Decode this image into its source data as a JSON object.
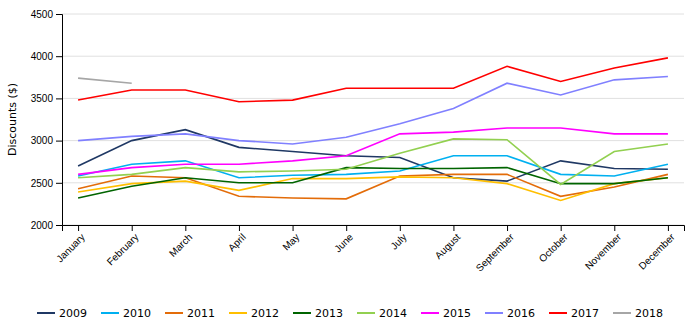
{
  "chart_data": {
    "type": "line",
    "categories": [
      "January",
      "February",
      "March",
      "April",
      "May",
      "June",
      "July",
      "August",
      "September",
      "October",
      "November",
      "December"
    ],
    "series": [
      {
        "name": "2009",
        "color": "#1f3864",
        "values": [
          2700,
          3000,
          3130,
          2920,
          2870,
          2820,
          2800,
          2560,
          2520,
          2760,
          2670,
          2660
        ]
      },
      {
        "name": "2010",
        "color": "#00b0f0",
        "values": [
          2580,
          2720,
          2760,
          2560,
          2590,
          2600,
          2640,
          2820,
          2820,
          2600,
          2580,
          2720
        ]
      },
      {
        "name": "2011",
        "color": "#e36c09",
        "values": [
          2430,
          2580,
          2560,
          2340,
          2320,
          2310,
          2580,
          2600,
          2600,
          2340,
          2450,
          2600
        ]
      },
      {
        "name": "2012",
        "color": "#ffbf00",
        "values": [
          2390,
          2490,
          2520,
          2410,
          2550,
          2550,
          2570,
          2560,
          2490,
          2290,
          2490,
          2560
        ]
      },
      {
        "name": "2013",
        "color": "#006400",
        "values": [
          2320,
          2460,
          2560,
          2500,
          2500,
          2680,
          2670,
          2670,
          2680,
          2490,
          2490,
          2560
        ]
      },
      {
        "name": "2014",
        "color": "#92d050",
        "values": [
          2560,
          2600,
          2680,
          2630,
          2640,
          2660,
          2850,
          3020,
          3010,
          2480,
          2870,
          2960
        ]
      },
      {
        "name": "2015",
        "color": "#ff00ff",
        "values": [
          2600,
          2680,
          2720,
          2720,
          2760,
          2820,
          3080,
          3100,
          3150,
          3150,
          3080,
          3080
        ]
      },
      {
        "name": "2016",
        "color": "#8080ff",
        "values": [
          3000,
          3050,
          3080,
          3000,
          2960,
          3040,
          3200,
          3380,
          3680,
          3540,
          3720,
          3760
        ]
      },
      {
        "name": "2017",
        "color": "#ff0000",
        "values": [
          3480,
          3600,
          3600,
          3460,
          3480,
          3620,
          3620,
          3620,
          3880,
          3700,
          3860,
          3980
        ]
      },
      {
        "name": "2018",
        "color": "#a6a6a6",
        "values": [
          3740,
          3680,
          null,
          null,
          null,
          null,
          null,
          null,
          null,
          null,
          null,
          null
        ]
      }
    ],
    "ylabel": "Discounts ($)",
    "ylim": [
      2000,
      4500
    ],
    "yticks": [
      2000,
      2500,
      3000,
      3500,
      4000,
      4500
    ],
    "grid": true,
    "legend": "bottom"
  }
}
